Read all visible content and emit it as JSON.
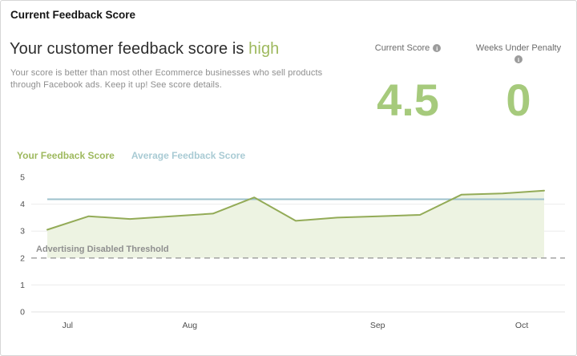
{
  "card": {
    "title": "Current Feedback Score"
  },
  "headline": {
    "prefix": "Your customer feedback score is ",
    "status": "high"
  },
  "description": {
    "text": "Your score is better than most other Ecommerce businesses who sell products through Facebook ads. Keep it up! ",
    "link": "See score details."
  },
  "stats": [
    {
      "label": "Current Score",
      "value": "4.5"
    },
    {
      "label": "Weeks Under Penalty",
      "value": "0"
    }
  ],
  "legend": [
    {
      "label": "Your Feedback Score",
      "color": "#9eb95e"
    },
    {
      "label": "Average Feedback Score",
      "color": "#a9cbd4"
    }
  ],
  "colors": {
    "status_green": "#9eb95e",
    "big_number_green": "#a6ca7c",
    "score_line_green": "#93ab57",
    "area_fill_green": "#edf3e2",
    "average_line_blue": "#9dc1cc",
    "threshold_gray": "#9b9b9b"
  },
  "chart_data": {
    "type": "line",
    "title": "",
    "xlabel": "",
    "ylabel": "",
    "ylim": [
      0,
      5
    ],
    "y_ticks": [
      5,
      4,
      3,
      2,
      1,
      0
    ],
    "gridlines": [
      4,
      3,
      1,
      0
    ],
    "x_unit": "week",
    "x_labels": [
      {
        "label": "Jul",
        "pos": 0.068
      },
      {
        "label": "Aug",
        "pos": 0.297
      },
      {
        "label": "Sep",
        "pos": 0.649
      },
      {
        "label": "Oct",
        "pos": 0.919
      }
    ],
    "series": [
      {
        "name": "Your Feedback Score",
        "color": "#93ab57",
        "area_fill": "#edf3e2",
        "values": [
          3.05,
          3.55,
          3.45,
          3.55,
          3.65,
          4.25,
          3.38,
          3.5,
          3.55,
          3.6,
          4.35,
          4.4,
          4.5
        ]
      },
      {
        "name": "Average Feedback Score",
        "color": "#9dc1cc",
        "value": 4.18
      }
    ],
    "threshold": {
      "label": "Advertising Disabled Threshold",
      "value": 2
    },
    "legend_position": "top-left",
    "grid": true
  }
}
